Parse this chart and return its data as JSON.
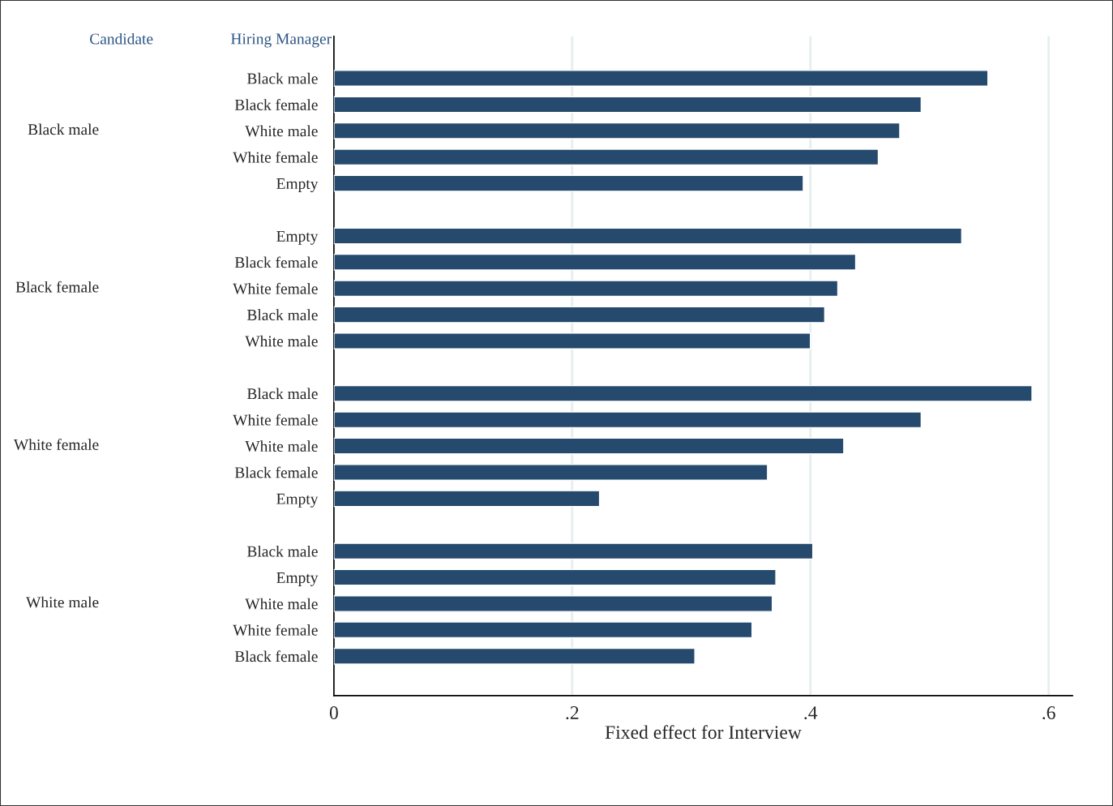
{
  "chart_data": {
    "type": "bar",
    "orientation": "horizontal",
    "xlabel": "Fixed effect for Interview",
    "categories": [
      "Black male",
      "Black female",
      "White male",
      "White female",
      "Empty",
      null,
      "Empty",
      "Black female",
      "White female",
      "Black male",
      "White male",
      null,
      "Black male",
      "White female",
      "White male",
      "Black female",
      "Empty",
      null,
      "Black male",
      "Empty",
      "White male",
      "White female",
      "Black female"
    ],
    "values": [
      0.549,
      0.493,
      0.475,
      0.457,
      0.394,
      null,
      0.527,
      0.438,
      0.423,
      0.412,
      0.4,
      null,
      0.586,
      0.493,
      0.428,
      0.364,
      0.223,
      null,
      0.402,
      0.371,
      0.368,
      0.351,
      0.303
    ],
    "color": "#264a6e",
    "xlim": [
      0,
      0.62
    ],
    "xticks": [
      0,
      {
        "value": 0.2,
        "label": ".2"
      },
      {
        "value": 0.4,
        "label": ".4"
      },
      {
        "value": 0.6,
        "label": ".6"
      }
    ],
    "grid": "x",
    "annotations": [
      "Candidate",
      "Hiring Manager",
      "Black male",
      "Black female",
      "White female",
      "White male"
    ]
  }
}
